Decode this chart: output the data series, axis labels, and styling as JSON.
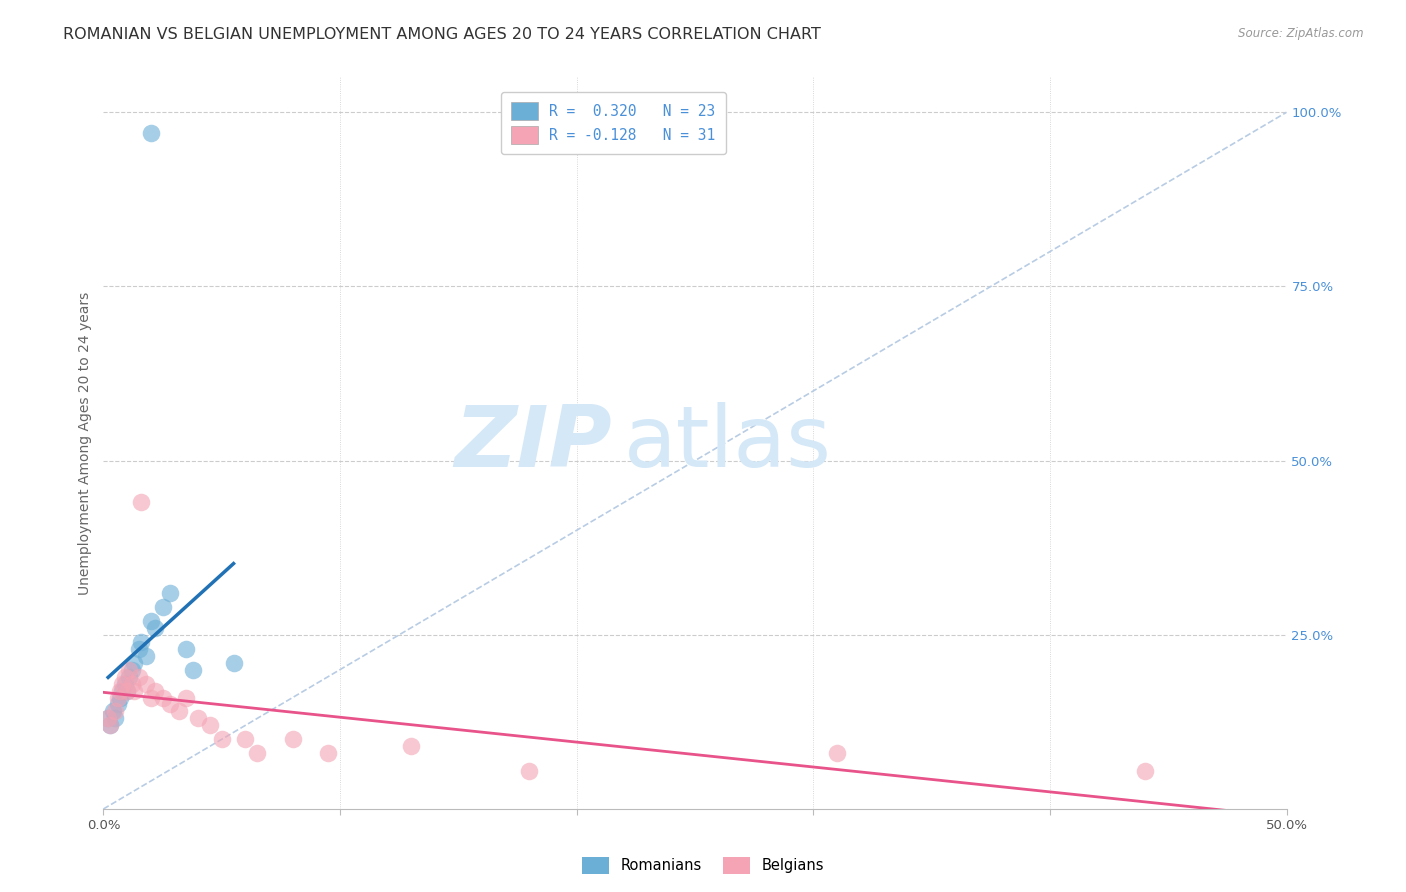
{
  "title": "ROMANIAN VS BELGIAN UNEMPLOYMENT AMONG AGES 20 TO 24 YEARS CORRELATION CHART",
  "source": "Source: ZipAtlas.com",
  "ylabel": "Unemployment Among Ages 20 to 24 years",
  "xlim": [
    0.0,
    0.5
  ],
  "ylim": [
    0.0,
    1.05
  ],
  "legend_entries": [
    {
      "label": "R =  0.320   N = 23",
      "color": "#a8c8f0"
    },
    {
      "label": "R = -0.128   N = 31",
      "color": "#f0a8b8"
    }
  ],
  "romanians_x": [
    0.002,
    0.003,
    0.004,
    0.005,
    0.006,
    0.007,
    0.008,
    0.009,
    0.01,
    0.011,
    0.012,
    0.013,
    0.015,
    0.016,
    0.018,
    0.02,
    0.022,
    0.025,
    0.028,
    0.035,
    0.038,
    0.055,
    0.02
  ],
  "romanians_y": [
    0.13,
    0.12,
    0.14,
    0.13,
    0.15,
    0.16,
    0.17,
    0.18,
    0.17,
    0.19,
    0.2,
    0.21,
    0.23,
    0.24,
    0.22,
    0.27,
    0.26,
    0.29,
    0.31,
    0.23,
    0.2,
    0.21,
    0.97
  ],
  "belgians_x": [
    0.002,
    0.003,
    0.005,
    0.006,
    0.007,
    0.008,
    0.009,
    0.01,
    0.011,
    0.012,
    0.013,
    0.015,
    0.016,
    0.018,
    0.02,
    0.022,
    0.025,
    0.028,
    0.032,
    0.035,
    0.04,
    0.045,
    0.05,
    0.06,
    0.065,
    0.08,
    0.095,
    0.13,
    0.18,
    0.31,
    0.44
  ],
  "belgians_y": [
    0.13,
    0.12,
    0.14,
    0.16,
    0.17,
    0.18,
    0.19,
    0.17,
    0.2,
    0.18,
    0.17,
    0.19,
    0.44,
    0.18,
    0.16,
    0.17,
    0.16,
    0.15,
    0.14,
    0.16,
    0.13,
    0.12,
    0.1,
    0.1,
    0.08,
    0.1,
    0.08,
    0.09,
    0.055,
    0.08,
    0.055
  ],
  "romanian_color": "#6baed6",
  "belgian_color": "#f4a4b4",
  "trendline_romanian_color": "#2171b5",
  "trendline_belgian_color": "#e8538a",
  "diagonal_color": "#b8cce4",
  "watermark_zip": "ZIP",
  "watermark_atlas": "atlas",
  "watermark_color": "#d4e8f8",
  "title_fontsize": 11.5,
  "axis_fontsize": 10,
  "tick_fontsize": 9.5
}
